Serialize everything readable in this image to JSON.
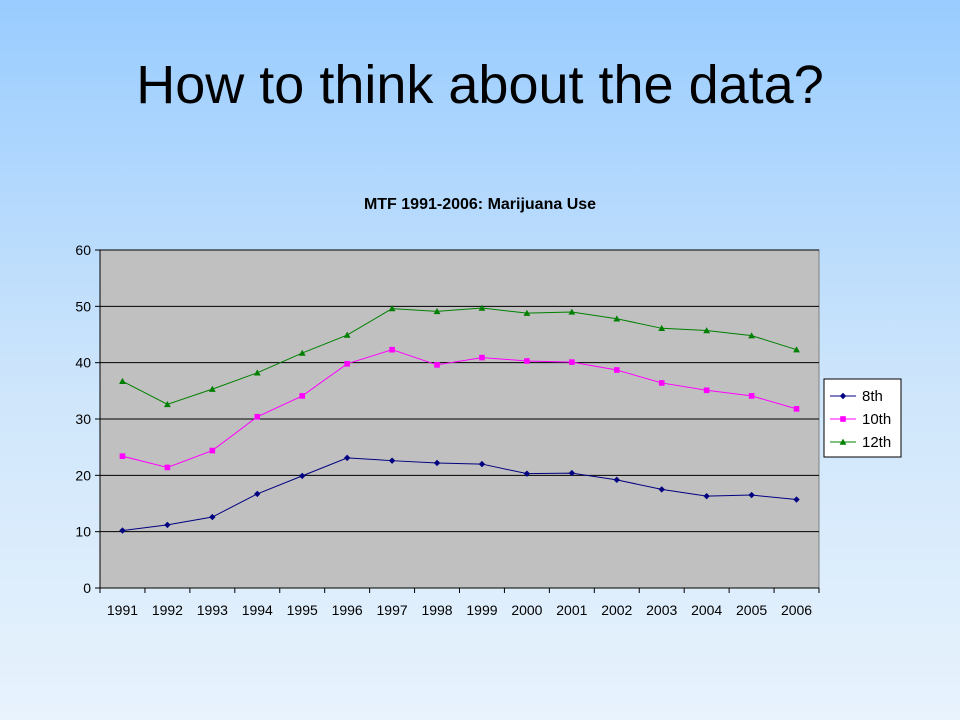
{
  "slide": {
    "title": "How to think about the data?"
  },
  "chart_data": {
    "type": "line",
    "title": "MTF 1991-2006: Marijuana Use",
    "xlabel": "",
    "ylabel": "",
    "x": [
      "1991",
      "1992",
      "1993",
      "1994",
      "1995",
      "1996",
      "1997",
      "1998",
      "1999",
      "2000",
      "2001",
      "2002",
      "2003",
      "2004",
      "2005",
      "2006"
    ],
    "ylim": [
      0,
      60
    ],
    "yticks": [
      0,
      10,
      20,
      30,
      40,
      50,
      60
    ],
    "grid": true,
    "legend": "right",
    "series": [
      {
        "name": "8th",
        "color": "#000080",
        "marker": "diamond",
        "values": [
          10.2,
          11.2,
          12.6,
          16.7,
          19.9,
          23.1,
          22.6,
          22.2,
          22.0,
          20.3,
          20.4,
          19.2,
          17.5,
          16.3,
          16.5,
          15.7
        ]
      },
      {
        "name": "10th",
        "color": "#ff00ff",
        "marker": "square",
        "values": [
          23.4,
          21.4,
          24.4,
          30.4,
          34.1,
          39.8,
          42.3,
          39.6,
          40.9,
          40.3,
          40.1,
          38.7,
          36.4,
          35.1,
          34.1,
          31.8
        ]
      },
      {
        "name": "12th",
        "color": "#008000",
        "marker": "triangle",
        "values": [
          36.7,
          32.6,
          35.3,
          38.2,
          41.7,
          44.9,
          49.6,
          49.1,
          49.7,
          48.8,
          49.0,
          47.8,
          46.1,
          45.7,
          44.8,
          42.3
        ]
      }
    ],
    "colors": {
      "plot_background": "#c0c0c0",
      "gridline": "#000000"
    }
  }
}
